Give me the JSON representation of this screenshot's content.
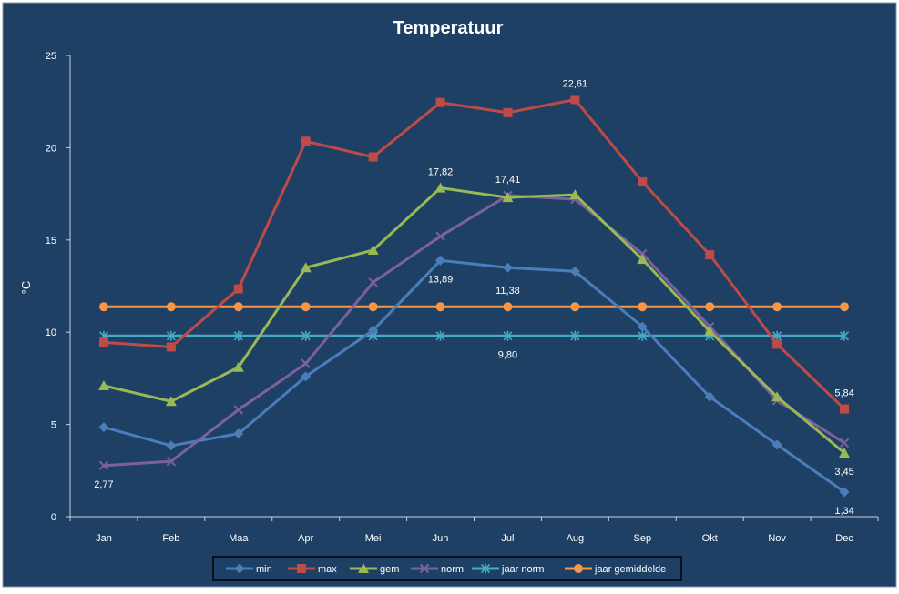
{
  "chart_data": {
    "type": "line",
    "title": "Temperatuur",
    "xlabel": "",
    "ylabel": "°C",
    "ylim": [
      0,
      25
    ],
    "yticks": [
      "0",
      "5",
      "10",
      "15",
      "20",
      "25"
    ],
    "categories": [
      "Jan",
      "Feb",
      "Maa",
      "Apr",
      "Mei",
      "Jun",
      "Jul",
      "Aug",
      "Sep",
      "Okt",
      "Nov",
      "Dec"
    ],
    "grid": false,
    "legend": "bottom",
    "series": [
      {
        "name": "min",
        "color": "#4a7ebb",
        "marker": "diamond",
        "values": [
          4.85,
          3.85,
          4.5,
          7.6,
          10.1,
          13.89,
          13.5,
          13.3,
          10.3,
          6.5,
          3.9,
          1.34
        ]
      },
      {
        "name": "max",
        "color": "#be4b48",
        "marker": "square",
        "values": [
          9.45,
          9.2,
          12.35,
          20.35,
          19.5,
          22.45,
          21.9,
          22.61,
          18.15,
          14.2,
          9.35,
          5.84
        ]
      },
      {
        "name": "gem",
        "color": "#98b954",
        "marker": "triangle",
        "values": [
          7.1,
          6.25,
          8.1,
          13.5,
          14.45,
          17.82,
          17.3,
          17.45,
          13.95,
          10.05,
          6.5,
          3.45
        ]
      },
      {
        "name": "norm",
        "color": "#7d60a0",
        "marker": "x",
        "values": [
          2.77,
          3.0,
          5.8,
          8.3,
          12.7,
          15.2,
          17.41,
          17.2,
          14.25,
          10.3,
          6.3,
          4.0
        ]
      },
      {
        "name": "jaar norm",
        "color": "#46aac5",
        "marker": "star",
        "values": [
          9.8,
          9.8,
          9.8,
          9.8,
          9.8,
          9.8,
          9.8,
          9.8,
          9.8,
          9.8,
          9.8,
          9.8
        ]
      },
      {
        "name": "jaar gemiddelde",
        "color": "#f79646",
        "marker": "circle",
        "values": [
          11.38,
          11.38,
          11.38,
          11.38,
          11.38,
          11.38,
          11.38,
          11.38,
          11.38,
          11.38,
          11.38,
          11.38
        ]
      }
    ],
    "annotations": [
      {
        "text": "2,77",
        "series": "norm",
        "index": 0,
        "pos": "below"
      },
      {
        "text": "13,89",
        "series": "min",
        "index": 5,
        "pos": "below"
      },
      {
        "text": "17,82",
        "series": "gem",
        "index": 5,
        "pos": "above"
      },
      {
        "text": "17,41",
        "series": "norm",
        "index": 6,
        "pos": "above"
      },
      {
        "text": "22,61",
        "series": "max",
        "index": 7,
        "pos": "above"
      },
      {
        "text": "11,38",
        "series": "jaar gemiddelde",
        "index": 6,
        "pos": "above"
      },
      {
        "text": "9,80",
        "series": "jaar norm",
        "index": 6,
        "pos": "below"
      },
      {
        "text": "5,84",
        "series": "max",
        "index": 11,
        "pos": "above"
      },
      {
        "text": "3,45",
        "series": "gem",
        "index": 11,
        "pos": "below"
      },
      {
        "text": "1,34",
        "series": "min",
        "index": 11,
        "pos": "below"
      }
    ],
    "colors": {
      "background": "#1f4065",
      "axis": "#c8d0dc",
      "text": "#ffffff",
      "legend_bg": "#ffffff"
    }
  }
}
